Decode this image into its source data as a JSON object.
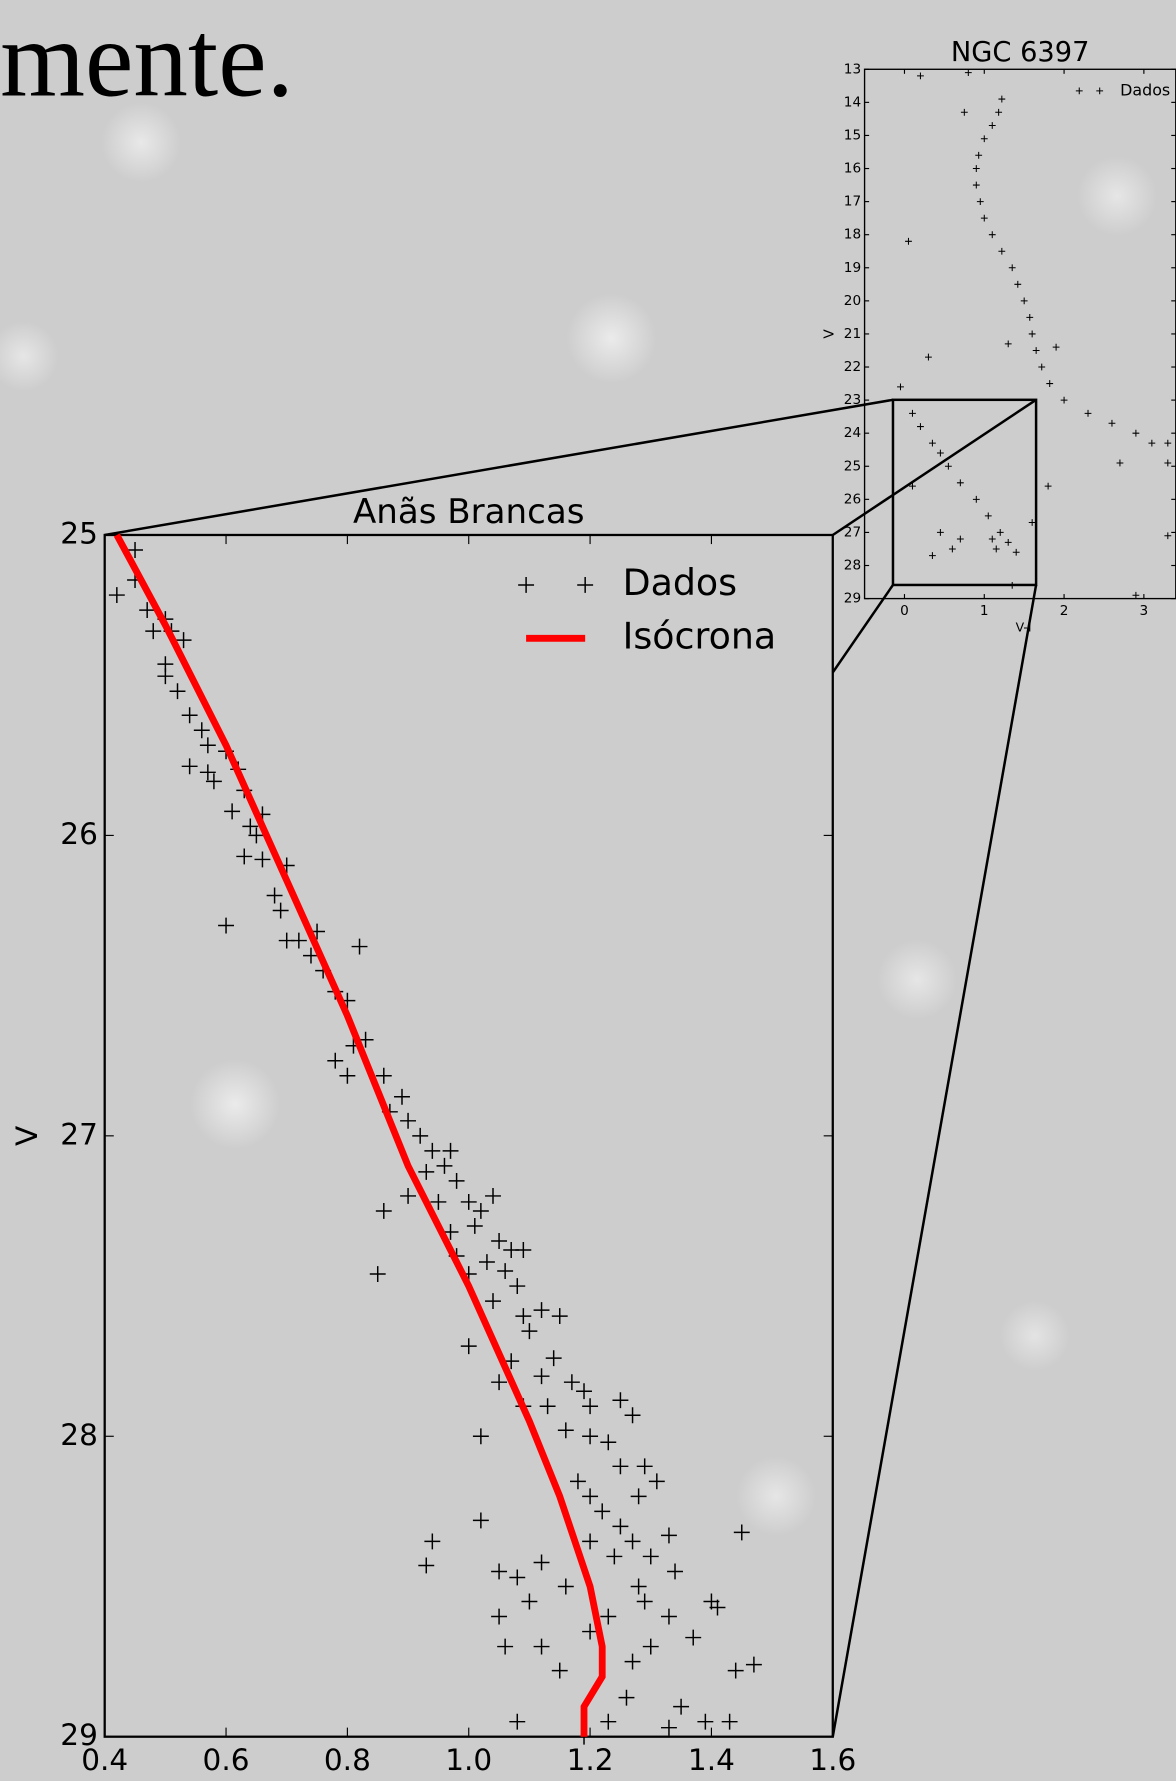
{
  "slide_text": "mente.",
  "chart_data": [
    {
      "type": "scatter",
      "title": "Anãs Brancas",
      "y_label": "V",
      "xlim": [
        0.4,
        1.6
      ],
      "ylim": [
        29,
        25
      ],
      "xticks": [
        0.4,
        0.6,
        0.8,
        {
          "value": 1,
          "label": "1.0"
        },
        1.2,
        1.4,
        1.6
      ],
      "yticks": [
        25,
        26,
        27,
        28,
        29
      ],
      "legend": "upper right",
      "series": [
        {
          "name": "Dados",
          "type": "scatter",
          "color": "#000000",
          "x": [
            0.45,
            0.42,
            0.45,
            0.47,
            0.5,
            0.51,
            0.48,
            0.53,
            0.5,
            0.5,
            0.52,
            0.54,
            0.56,
            0.57,
            0.54,
            0.57,
            0.6,
            0.58,
            0.62,
            0.63,
            0.61,
            0.66,
            0.64,
            0.65,
            0.63,
            0.66,
            0.7,
            0.68,
            0.69,
            0.6,
            0.7,
            0.72,
            0.75,
            0.74,
            0.76,
            0.82,
            0.78,
            0.8,
            0.83,
            0.81,
            0.78,
            0.8,
            0.86,
            0.89,
            0.87,
            0.9,
            0.92,
            0.94,
            0.97,
            0.96,
            0.93,
            0.98,
            0.9,
            0.95,
            1.0,
            1.02,
            0.86,
            0.97,
            1.04,
            1.01,
            1.05,
            0.98,
            1.03,
            1.07,
            1.09,
            0.85,
            1.0,
            1.06,
            1.08,
            1.04,
            1.09,
            1.12,
            1.1,
            1.15,
            1.0,
            1.07,
            1.14,
            1.12,
            1.17,
            1.05,
            1.19,
            1.13,
            1.2,
            1.09,
            1.25,
            1.27,
            1.16,
            1.02,
            1.2,
            1.23,
            1.25,
            1.18,
            1.29,
            1.28,
            1.2,
            1.22,
            1.31,
            1.25,
            1.02,
            1.27,
            1.33,
            1.24,
            0.94,
            1.2,
            1.3,
            1.45,
            0.93,
            1.12,
            1.05,
            1.08,
            1.16,
            1.28,
            1.34,
            1.1,
            1.29,
            1.05,
            1.23,
            1.33,
            1.4,
            1.41,
            1.06,
            1.12,
            1.2,
            1.3,
            1.37,
            1.15,
            1.27,
            1.44,
            1.47,
            1.26,
            1.35,
            1.08,
            1.23,
            1.33,
            1.39,
            1.43,
            1.19
          ],
          "values": [
            25.05,
            25.2,
            25.15,
            25.25,
            25.28,
            25.32,
            25.32,
            25.35,
            25.43,
            25.47,
            25.52,
            25.6,
            25.65,
            25.7,
            25.77,
            25.79,
            25.72,
            25.82,
            25.78,
            25.85,
            25.92,
            25.93,
            25.97,
            26.0,
            26.07,
            26.08,
            26.1,
            26.2,
            26.25,
            26.3,
            26.35,
            26.35,
            26.32,
            26.4,
            26.45,
            26.37,
            26.52,
            26.55,
            26.68,
            26.7,
            26.75,
            26.8,
            26.8,
            26.87,
            26.92,
            26.95,
            27.0,
            27.05,
            27.05,
            27.1,
            27.12,
            27.15,
            27.2,
            27.22,
            27.22,
            27.25,
            27.25,
            27.32,
            27.2,
            27.3,
            27.35,
            27.4,
            27.42,
            27.38,
            27.38,
            27.46,
            27.46,
            27.45,
            27.5,
            27.55,
            27.6,
            27.58,
            27.65,
            27.6,
            27.7,
            27.75,
            27.74,
            27.8,
            27.82,
            27.82,
            27.85,
            27.9,
            27.9,
            27.9,
            27.88,
            27.93,
            27.98,
            28.0,
            28.0,
            28.02,
            28.1,
            28.15,
            28.1,
            28.2,
            28.2,
            28.25,
            28.15,
            28.3,
            28.28,
            28.35,
            28.33,
            28.4,
            28.35,
            28.35,
            28.4,
            28.32,
            28.43,
            28.42,
            28.45,
            28.47,
            28.5,
            28.5,
            28.45,
            28.55,
            28.55,
            28.6,
            28.6,
            28.6,
            28.55,
            28.57,
            28.7,
            28.7,
            28.65,
            28.7,
            28.67,
            28.78,
            28.75,
            28.78,
            28.76,
            28.87,
            28.9,
            28.95,
            28.95,
            28.97,
            28.95,
            28.95,
            29.0
          ]
        },
        {
          "name": "Isócrona",
          "type": "line",
          "color": "#ff0000",
          "x": [
            0.42,
            0.5,
            0.6,
            0.7,
            0.8,
            0.9,
            1.0,
            1.1,
            1.15,
            1.2,
            1.22,
            1.22,
            1.19,
            1.19
          ],
          "values": [
            25.0,
            25.3,
            25.7,
            26.15,
            26.6,
            27.1,
            27.5,
            27.95,
            28.2,
            28.5,
            28.7,
            28.8,
            28.9,
            29.0
          ]
        }
      ]
    },
    {
      "type": "scatter",
      "title": "NGC 6397",
      "x_label": "V-I",
      "y_label": "V",
      "xlim": [
        -0.5,
        3.4
      ],
      "ylim": [
        29,
        13
      ],
      "xticks": [
        0,
        1,
        2,
        3
      ],
      "yticks": [
        13,
        14,
        15,
        16,
        17,
        18,
        19,
        20,
        21,
        22,
        23,
        24,
        25,
        26,
        27,
        28,
        29
      ],
      "legend": "upper right",
      "series": [
        {
          "name": "Dados",
          "type": "scatter",
          "color": "#000000",
          "x": [
            1.22,
            1.18,
            1.1,
            1.0,
            0.93,
            0.9,
            0.9,
            0.95,
            1.0,
            1.1,
            1.22,
            1.35,
            1.42,
            1.5,
            1.57,
            1.6,
            1.65,
            1.72,
            1.82,
            2.0,
            2.3,
            2.6,
            2.9,
            3.1,
            0.2,
            0.8,
            0.75,
            0.05,
            0.3,
            -0.05,
            1.3,
            1.9,
            3.3,
            3.3,
            2.7,
            2.9,
            3.3,
            1.6,
            1.8,
            0.1,
            0.2,
            0.35,
            0.45,
            0.55,
            0.7,
            0.9,
            1.05,
            1.2,
            1.3,
            1.1,
            1.4,
            1.15,
            0.45,
            0.7,
            0.35,
            0.6,
            0.1,
            1.35
          ],
          "values": [
            13.9,
            14.3,
            14.7,
            15.1,
            15.6,
            16.0,
            16.5,
            17.0,
            17.5,
            18.0,
            18.5,
            19.0,
            19.5,
            20.0,
            20.5,
            21.0,
            21.5,
            22.0,
            22.5,
            23.0,
            23.4,
            23.7,
            24.0,
            24.3,
            13.2,
            13.1,
            14.3,
            18.2,
            21.7,
            22.6,
            21.3,
            21.4,
            24.3,
            24.9,
            24.9,
            28.9,
            27.1,
            26.7,
            25.6,
            23.4,
            23.8,
            24.3,
            24.6,
            25.0,
            25.5,
            26.0,
            26.5,
            27.0,
            27.3,
            27.2,
            27.6,
            27.5,
            27.0,
            27.2,
            27.7,
            27.5,
            25.6,
            28.6
          ]
        }
      ]
    }
  ]
}
